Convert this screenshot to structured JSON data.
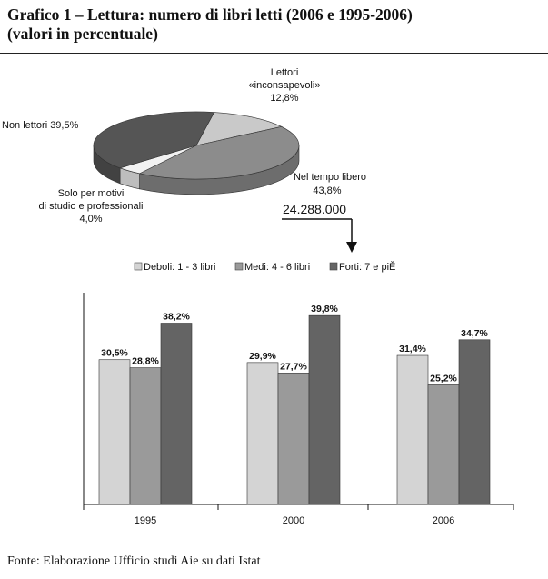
{
  "title": {
    "line1": "Grafico 1 – Lettura: numero di libri letti (2006 e 1995-2006)",
    "line2": "(valori in percentuale)"
  },
  "source": "Fonte: Elaborazione Ufficio studi Aie su dati Istat",
  "colors": {
    "deboli": "#d4d4d4",
    "medi": "#9a9a9a",
    "forti": "#646464",
    "non_lettori": "#555555",
    "inconsapevoli": "#c9c9c9",
    "studio": "#f2f2f2",
    "tempo_libero": "#8c8c8c"
  },
  "pie": {
    "labels": {
      "inconsapevoli": [
        "Lettori",
        "«inconsapevoli»",
        "12,8%"
      ],
      "non_lettori": [
        "Non lettori 39,5%"
      ],
      "tempo_libero": [
        "Nel tempo libero",
        "43,8%"
      ],
      "studio": [
        "Solo per motivi",
        "di studio e professionali",
        "4,0%"
      ]
    },
    "callout_value": "24.288.000"
  },
  "chart_data": [
    {
      "type": "pie",
      "title": "",
      "slices": [
        {
          "label": "Lettori «inconsapevoli»",
          "value": 12.8
        },
        {
          "label": "Nel tempo libero",
          "value": 43.8
        },
        {
          "label": "Solo per motivi di studio e professionali",
          "value": 4.0
        },
        {
          "label": "Non lettori",
          "value": 39.5
        }
      ],
      "annotation": "24.288.000"
    },
    {
      "type": "bar",
      "title": "",
      "categories": [
        "1995",
        "2000",
        "2006"
      ],
      "series": [
        {
          "name": "Deboli: 1 - 3 libri",
          "values": [
            30.5,
            29.9,
            31.4
          ],
          "labels": [
            "30,5%",
            "29,9%",
            "31,4%"
          ]
        },
        {
          "name": "Medi: 4 - 6 libri",
          "values": [
            28.8,
            27.7,
            25.2
          ],
          "labels": [
            "28,8%",
            "27,7%",
            "25,2%"
          ]
        },
        {
          "name": "Forti: 7 e piĚ",
          "values": [
            38.2,
            39.8,
            34.7
          ],
          "labels": [
            "38,2%",
            "39,8%",
            "34,7%"
          ]
        }
      ],
      "xlabel": "",
      "ylabel": "",
      "ylim": [
        0,
        45
      ],
      "grid": false,
      "legend": "top"
    }
  ]
}
